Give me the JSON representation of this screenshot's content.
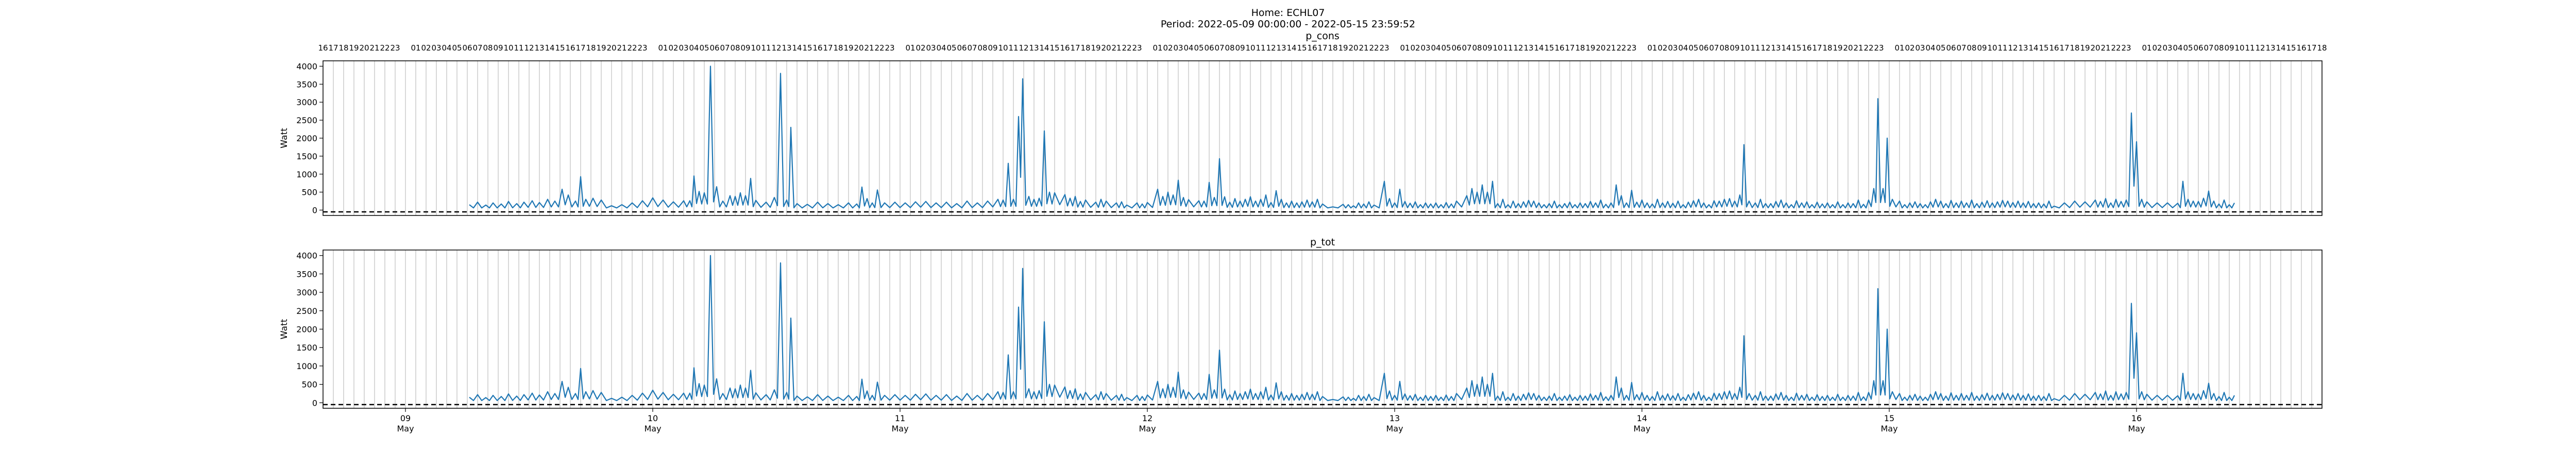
{
  "figure": {
    "title_line1": "Home: ECHL07",
    "title_line2": "Period: 2022-05-09 00:00:00 - 2022-05-15 23:59:52"
  },
  "colors": {
    "series": "#1f77b4",
    "baseline": "#000000",
    "grid": "#b0b0b0"
  },
  "chart_data": [
    {
      "type": "line",
      "title": "p_cons",
      "ylabel": "Watt",
      "x_unit": "hours since 2022-05-08 16:00",
      "xlim_hours": [
        0,
        194
      ],
      "ylim": [
        -150,
        4150
      ],
      "yticks": [
        0,
        500,
        1000,
        1500,
        2000,
        2500,
        3000,
        3500,
        4000
      ],
      "baseline_value": -50,
      "top_hour_tick_start_hour": 16,
      "series": [
        {
          "name": "p_cons",
          "x": [],
          "y": []
        }
      ],
      "peaks": [
        [
          14.2,
          150
        ],
        [
          15.0,
          220
        ],
        [
          15.8,
          140
        ],
        [
          16.5,
          200
        ],
        [
          17.3,
          170
        ],
        [
          18.0,
          240
        ],
        [
          18.8,
          180
        ],
        [
          19.5,
          220
        ],
        [
          20.3,
          260
        ],
        [
          21.0,
          210
        ],
        [
          21.8,
          300
        ],
        [
          22.5,
          250
        ],
        [
          23.2,
          580
        ],
        [
          23.8,
          420
        ],
        [
          24.5,
          250
        ],
        [
          25.0,
          930
        ],
        [
          25.5,
          300
        ],
        [
          26.2,
          330
        ],
        [
          27.0,
          280
        ],
        [
          28.0,
          120
        ],
        [
          29.0,
          150
        ],
        [
          30.0,
          200
        ],
        [
          31.0,
          260
        ],
        [
          32.0,
          340
        ],
        [
          33.0,
          280
        ],
        [
          34.0,
          230
        ],
        [
          35.0,
          260
        ],
        [
          35.6,
          260
        ],
        [
          36.0,
          950
        ],
        [
          36.5,
          520
        ],
        [
          37.0,
          480
        ],
        [
          37.6,
          4000
        ],
        [
          38.2,
          650
        ],
        [
          38.8,
          250
        ],
        [
          39.5,
          400
        ],
        [
          40.0,
          380
        ],
        [
          40.5,
          480
        ],
        [
          41.0,
          400
        ],
        [
          41.5,
          880
        ],
        [
          42.0,
          270
        ],
        [
          43.0,
          220
        ],
        [
          43.8,
          350
        ],
        [
          44.4,
          3800
        ],
        [
          45.0,
          280
        ],
        [
          45.4,
          2300
        ],
        [
          46.0,
          180
        ],
        [
          47.0,
          160
        ],
        [
          48.0,
          220
        ],
        [
          49.0,
          180
        ],
        [
          50.0,
          150
        ],
        [
          51.0,
          200
        ],
        [
          51.8,
          170
        ],
        [
          52.3,
          640
        ],
        [
          52.8,
          320
        ],
        [
          53.3,
          200
        ],
        [
          53.8,
          560
        ],
        [
          54.5,
          200
        ],
        [
          55.5,
          220
        ],
        [
          56.5,
          200
        ],
        [
          57.5,
          230
        ],
        [
          58.5,
          240
        ],
        [
          59.5,
          200
        ],
        [
          60.5,
          220
        ],
        [
          61.5,
          180
        ],
        [
          62.5,
          250
        ],
        [
          63.5,
          200
        ],
        [
          64.5,
          250
        ],
        [
          65.5,
          300
        ],
        [
          66.0,
          280
        ],
        [
          66.5,
          1300
        ],
        [
          67.0,
          300
        ],
        [
          67.5,
          2600
        ],
        [
          67.9,
          3650
        ],
        [
          68.5,
          380
        ],
        [
          69.0,
          300
        ],
        [
          69.5,
          330
        ],
        [
          70.0,
          2200
        ],
        [
          70.5,
          500
        ],
        [
          71.0,
          480
        ],
        [
          72.0,
          430
        ],
        [
          72.5,
          330
        ],
        [
          73.0,
          380
        ],
        [
          73.5,
          240
        ],
        [
          74.0,
          280
        ],
        [
          75.0,
          220
        ],
        [
          75.5,
          300
        ],
        [
          76.0,
          250
        ],
        [
          77.0,
          200
        ],
        [
          77.5,
          230
        ],
        [
          78.0,
          140
        ],
        [
          79.0,
          200
        ],
        [
          79.5,
          170
        ],
        [
          80.0,
          210
        ],
        [
          81.0,
          580
        ],
        [
          81.5,
          380
        ],
        [
          82.0,
          500
        ],
        [
          82.5,
          420
        ],
        [
          83.0,
          830
        ],
        [
          83.5,
          350
        ],
        [
          84.0,
          290
        ],
        [
          85.0,
          260
        ],
        [
          85.5,
          250
        ],
        [
          86.0,
          770
        ],
        [
          86.5,
          350
        ],
        [
          87.0,
          1430
        ],
        [
          87.5,
          370
        ],
        [
          88.0,
          220
        ],
        [
          88.5,
          320
        ],
        [
          89.0,
          250
        ],
        [
          89.5,
          300
        ],
        [
          90.0,
          370
        ],
        [
          90.5,
          250
        ],
        [
          91.0,
          300
        ],
        [
          91.5,
          420
        ],
        [
          92.0,
          210
        ],
        [
          92.5,
          540
        ],
        [
          93.0,
          300
        ],
        [
          93.5,
          200
        ],
        [
          94.0,
          250
        ],
        [
          94.5,
          200
        ],
        [
          95.0,
          230
        ],
        [
          95.5,
          280
        ],
        [
          96.0,
          230
        ],
        [
          96.5,
          300
        ],
        [
          97.0,
          170
        ],
        [
          98.0,
          90
        ],
        [
          99.0,
          160
        ],
        [
          99.5,
          150
        ],
        [
          100.0,
          120
        ],
        [
          100.5,
          200
        ],
        [
          101.0,
          170
        ],
        [
          101.5,
          230
        ],
        [
          102.0,
          140
        ],
        [
          103.0,
          800
        ],
        [
          103.5,
          320
        ],
        [
          104.0,
          200
        ],
        [
          104.5,
          580
        ],
        [
          105.0,
          240
        ],
        [
          105.5,
          190
        ],
        [
          106.0,
          230
        ],
        [
          106.5,
          150
        ],
        [
          107.0,
          200
        ],
        [
          107.5,
          170
        ],
        [
          108.0,
          200
        ],
        [
          108.5,
          150
        ],
        [
          109.0,
          210
        ],
        [
          109.5,
          170
        ],
        [
          110.0,
          250
        ],
        [
          111.0,
          400
        ],
        [
          111.5,
          600
        ],
        [
          112.0,
          500
        ],
        [
          112.5,
          700
        ],
        [
          113.0,
          500
        ],
        [
          113.5,
          800
        ],
        [
          114.0,
          180
        ],
        [
          114.5,
          300
        ],
        [
          115.0,
          150
        ],
        [
          115.5,
          250
        ],
        [
          116.0,
          180
        ],
        [
          116.5,
          230
        ],
        [
          117.0,
          270
        ],
        [
          117.5,
          250
        ],
        [
          118.0,
          200
        ],
        [
          118.5,
          150
        ],
        [
          119.0,
          180
        ],
        [
          119.5,
          250
        ],
        [
          120.0,
          150
        ],
        [
          120.5,
          180
        ],
        [
          121.0,
          220
        ],
        [
          121.5,
          150
        ],
        [
          122.0,
          200
        ],
        [
          122.5,
          180
        ],
        [
          123.0,
          240
        ],
        [
          123.5,
          200
        ],
        [
          124.0,
          280
        ],
        [
          124.5,
          160
        ],
        [
          125.0,
          200
        ],
        [
          125.5,
          700
        ],
        [
          126.0,
          400
        ],
        [
          126.5,
          200
        ],
        [
          127.0,
          550
        ],
        [
          127.5,
          220
        ],
        [
          128.0,
          280
        ],
        [
          128.5,
          200
        ],
        [
          129.0,
          170
        ],
        [
          129.5,
          300
        ],
        [
          130.0,
          200
        ],
        [
          130.5,
          240
        ],
        [
          131.0,
          190
        ],
        [
          131.5,
          250
        ],
        [
          132.0,
          150
        ],
        [
          132.5,
          220
        ],
        [
          133.0,
          260
        ],
        [
          133.5,
          300
        ],
        [
          134.0,
          200
        ],
        [
          134.5,
          150
        ],
        [
          135.0,
          260
        ],
        [
          135.5,
          250
        ],
        [
          136.0,
          300
        ],
        [
          136.5,
          320
        ],
        [
          137.0,
          250
        ],
        [
          137.5,
          420
        ],
        [
          137.9,
          1820
        ],
        [
          138.4,
          250
        ],
        [
          139.0,
          200
        ],
        [
          139.5,
          300
        ],
        [
          140.0,
          180
        ],
        [
          140.5,
          180
        ],
        [
          141.0,
          240
        ],
        [
          141.5,
          280
        ],
        [
          142.0,
          200
        ],
        [
          142.5,
          150
        ],
        [
          143.0,
          260
        ],
        [
          143.5,
          200
        ],
        [
          144.0,
          230
        ],
        [
          144.5,
          150
        ],
        [
          145.0,
          220
        ],
        [
          145.5,
          170
        ],
        [
          146.0,
          200
        ],
        [
          146.5,
          150
        ],
        [
          147.0,
          230
        ],
        [
          147.5,
          150
        ],
        [
          148.0,
          200
        ],
        [
          148.5,
          180
        ],
        [
          149.0,
          280
        ],
        [
          149.5,
          160
        ],
        [
          150.0,
          280
        ],
        [
          150.5,
          600
        ],
        [
          150.9,
          3100
        ],
        [
          151.4,
          600
        ],
        [
          151.8,
          2000
        ],
        [
          152.3,
          300
        ],
        [
          153.0,
          250
        ],
        [
          153.5,
          150
        ],
        [
          154.0,
          200
        ],
        [
          154.5,
          230
        ],
        [
          155.0,
          180
        ],
        [
          155.5,
          150
        ],
        [
          156.0,
          230
        ],
        [
          156.5,
          300
        ],
        [
          157.0,
          250
        ],
        [
          157.5,
          180
        ],
        [
          158.0,
          270
        ],
        [
          158.5,
          200
        ],
        [
          159.0,
          250
        ],
        [
          159.5,
          200
        ],
        [
          160.0,
          280
        ],
        [
          160.5,
          180
        ],
        [
          161.0,
          220
        ],
        [
          161.5,
          260
        ],
        [
          162.0,
          200
        ],
        [
          162.5,
          230
        ],
        [
          163.0,
          270
        ],
        [
          163.5,
          250
        ],
        [
          164.0,
          210
        ],
        [
          164.5,
          250
        ],
        [
          165.0,
          200
        ],
        [
          165.5,
          240
        ],
        [
          166.0,
          180
        ],
        [
          166.5,
          200
        ],
        [
          167.0,
          170
        ],
        [
          167.5,
          250
        ],
        [
          168.0,
          110
        ],
        [
          169.0,
          200
        ],
        [
          170.0,
          250
        ],
        [
          171.0,
          230
        ],
        [
          172.0,
          280
        ],
        [
          172.5,
          240
        ],
        [
          173.0,
          320
        ],
        [
          173.5,
          200
        ],
        [
          174.0,
          300
        ],
        [
          174.5,
          240
        ],
        [
          175.0,
          280
        ],
        [
          175.5,
          2700
        ],
        [
          176.0,
          1900
        ],
        [
          176.5,
          300
        ],
        [
          177.0,
          230
        ],
        [
          178.0,
          200
        ],
        [
          179.0,
          200
        ],
        [
          180.0,
          190
        ],
        [
          180.5,
          800
        ],
        [
          181.0,
          300
        ],
        [
          181.5,
          250
        ],
        [
          182.0,
          240
        ],
        [
          182.5,
          330
        ],
        [
          183.0,
          530
        ],
        [
          183.5,
          250
        ],
        [
          184.0,
          170
        ],
        [
          184.5,
          280
        ],
        [
          185.0,
          150
        ],
        [
          185.5,
          200
        ]
      ]
    },
    {
      "type": "line",
      "title": "p_tot",
      "ylabel": "Watt",
      "x_unit": "hours since 2022-05-08 16:00",
      "xlim_hours": [
        0,
        194
      ],
      "ylim": [
        -150,
        4150
      ],
      "yticks": [
        0,
        500,
        1000,
        1500,
        2000,
        2500,
        3000,
        3500,
        4000
      ],
      "baseline_value": -50,
      "bottom_day_ticks": [
        {
          "hour": 8,
          "day": "09",
          "month": "May"
        },
        {
          "hour": 32,
          "day": "10",
          "month": "May"
        },
        {
          "hour": 56,
          "day": "11",
          "month": "May"
        },
        {
          "hour": 80,
          "day": "12",
          "month": "May"
        },
        {
          "hour": 104,
          "day": "13",
          "month": "May"
        },
        {
          "hour": 128,
          "day": "14",
          "month": "May"
        },
        {
          "hour": 152,
          "day": "15",
          "month": "May"
        },
        {
          "hour": 176,
          "day": "16",
          "month": "May"
        }
      ],
      "series": [
        {
          "name": "p_tot",
          "x": [],
          "y": []
        }
      ],
      "same_as_first": true
    }
  ]
}
